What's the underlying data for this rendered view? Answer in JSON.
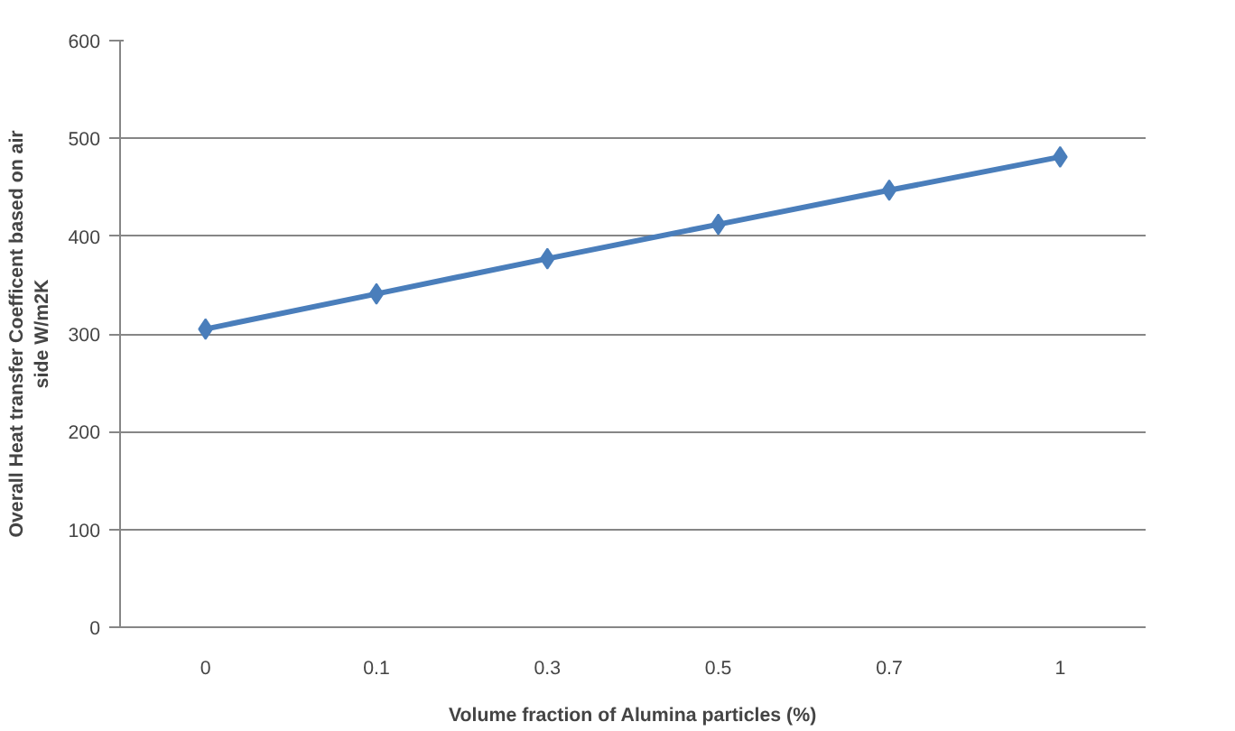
{
  "chart_data": {
    "type": "line",
    "categories": [
      "0",
      "0.1",
      "0.3",
      "0.5",
      "0.7",
      "1"
    ],
    "series": [
      {
        "color": "#4a7ebb",
        "values": [
          305,
          341,
          377,
          412,
          447,
          481
        ]
      }
    ],
    "xlabel": "Volume fraction of Alumina particles (%)",
    "ylabel": "Overall Heat transfer Coefficent based on air side W/m2K",
    "ylim": [
      0,
      600
    ],
    "yticks": [
      0,
      100,
      200,
      300,
      400,
      500,
      600
    ],
    "grid": "y",
    "marker": "diamond",
    "line_style": "solid"
  }
}
